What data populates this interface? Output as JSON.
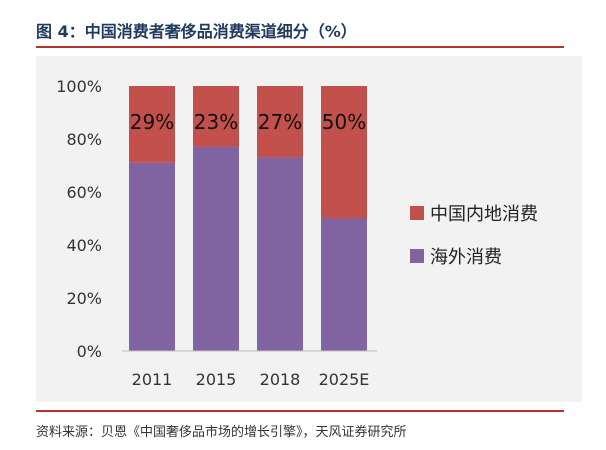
{
  "figure": {
    "title": "图 4：中国消费者奢侈品消费渠道细分（%）",
    "source": "资料来源：贝恩《中国奢侈品市场的增长引擎》，天风证券研究所"
  },
  "colors": {
    "domestic": "#c2504d",
    "overseas": "#8064a2",
    "plot_bg": "#f2f2f2"
  },
  "chart_data": {
    "type": "bar",
    "stacked": true,
    "categories": [
      "2011",
      "2015",
      "2018",
      "2025E"
    ],
    "series": [
      {
        "name": "海外消费",
        "values": [
          71,
          77,
          73,
          50
        ]
      },
      {
        "name": "中国内地消费",
        "values": [
          29,
          23,
          27,
          50
        ]
      }
    ],
    "data_labels": [
      "29%",
      "23%",
      "27%",
      "50%"
    ],
    "ylim": [
      0,
      100
    ],
    "yticks": [
      0,
      20,
      40,
      60,
      80,
      100
    ],
    "ytick_labels": [
      "0%",
      "20%",
      "40%",
      "60%",
      "80%",
      "100%"
    ],
    "legend": {
      "position": "right",
      "entries": [
        "中国内地消费",
        "海外消费"
      ]
    },
    "grid": false
  }
}
